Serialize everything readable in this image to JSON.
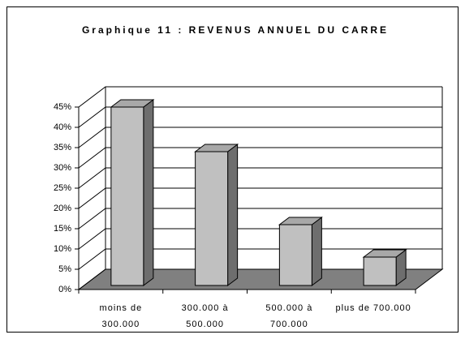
{
  "chart_data": {
    "type": "bar",
    "title": "Graphique 11 : REVENUS ANNUEL DU CARRE",
    "categories": [
      "moins de 300.000",
      "300.000 à 500.000",
      "500.000 à 700.000",
      "plus de 700.000"
    ],
    "values": [
      44,
      33,
      15,
      7
    ],
    "color": "#c0c0c0",
    "ylim": [
      0,
      45
    ],
    "yticks": [
      {
        "value": 0,
        "label": "0%"
      },
      {
        "value": 5,
        "label": "5%"
      },
      {
        "value": 10,
        "label": "10%"
      },
      {
        "value": 15,
        "label": "15%"
      },
      {
        "value": 20,
        "label": "20%"
      },
      {
        "value": 25,
        "label": "25%"
      },
      {
        "value": 30,
        "label": "30%"
      },
      {
        "value": 35,
        "label": "35%"
      },
      {
        "value": 40,
        "label": "40%"
      },
      {
        "value": 45,
        "label": "45%"
      }
    ],
    "grid": true
  }
}
